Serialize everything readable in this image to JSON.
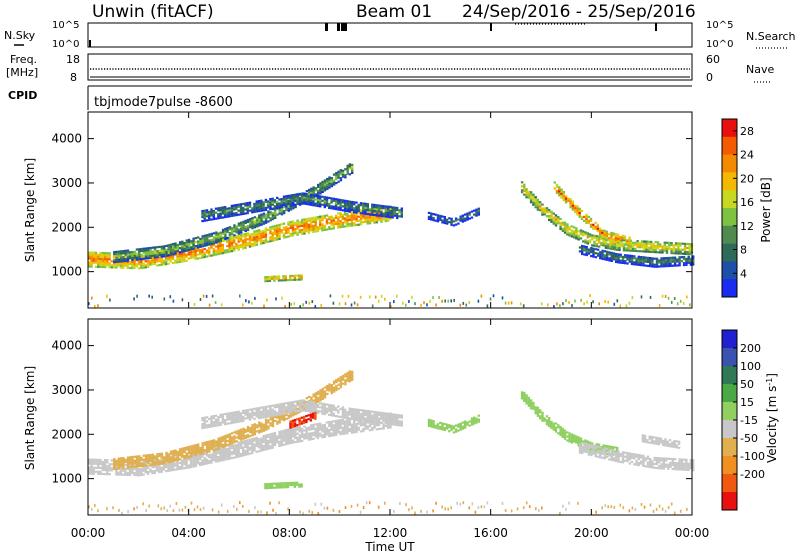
{
  "header": {
    "radar": "Unwin (fitACF)",
    "beam": "Beam 01",
    "dates": "24/Sep/2016 - 25/Sep/2016"
  },
  "top_panels": {
    "nsky": {
      "label": "N.Sky",
      "tick_high": "10^5",
      "tick_low": "10^0",
      "right_label": "N.Search",
      "right_high": "10^5",
      "right_low": "10^0"
    },
    "freq": {
      "label_line1": "Freq.",
      "label_line2": "[MHz]",
      "tick_high": "18",
      "tick_low": "8",
      "right_label": "Nave",
      "right_high": "60",
      "right_low": "0"
    },
    "cpid": {
      "label": "CPID",
      "mode": "tbjmode7pulse -8600"
    }
  },
  "chart_data": [
    {
      "type": "heatmap",
      "name": "power-panel",
      "xlabel": "Time UT",
      "ylabel": "Slant Range [km]",
      "x_ticks": [
        "00:00",
        "04:00",
        "08:00",
        "12:00",
        "16:00",
        "20:00",
        "00:00"
      ],
      "x_range_hours": [
        0,
        24
      ],
      "y_ticks": [
        1000,
        2000,
        3000,
        4000
      ],
      "y_range_km": [
        180,
        4600
      ],
      "colorbar": {
        "label": "Power [dB]",
        "ticks": [
          4,
          8,
          12,
          16,
          20,
          24,
          28
        ],
        "range": [
          0,
          30
        ],
        "colors": [
          "#1a2cf0",
          "#1d4fa8",
          "#2e6a57",
          "#4f8a50",
          "#7dc241",
          "#c8d820",
          "#f5b800",
          "#f58a00",
          "#f45a00",
          "#e8100e"
        ]
      },
      "traces": [
        {
          "hours": [
            0.0,
            2.0,
            4.0,
            6.0,
            8.0,
            10.0,
            12.0
          ],
          "km": [
            1260,
            1220,
            1400,
            1650,
            1950,
            2150,
            2300
          ],
          "width_km": 330,
          "value": 24
        },
        {
          "hours": [
            1.0,
            3.0,
            5.0,
            7.0,
            9.0,
            10.5
          ],
          "km": [
            1320,
            1450,
            1750,
            2200,
            2800,
            3350
          ],
          "width_km": 250,
          "value": 14
        },
        {
          "hours": [
            4.5,
            6.5,
            8.5,
            10.5,
            12.5
          ],
          "km": [
            2250,
            2450,
            2650,
            2450,
            2300
          ],
          "width_km": 260,
          "value": 11
        },
        {
          "hours": [
            7.0,
            8.5
          ],
          "km": [
            820,
            860
          ],
          "width_km": 110,
          "value": 22
        },
        {
          "hours": [
            13.5,
            14.5,
            15.5
          ],
          "km": [
            2250,
            2100,
            2350
          ],
          "width_km": 160,
          "value": 9
        },
        {
          "hours": [
            17.2,
            18.0,
            19.0,
            20.0,
            21.0,
            22.5,
            24.0
          ],
          "km": [
            2900,
            2400,
            1950,
            1700,
            1600,
            1550,
            1500
          ],
          "width_km": 260,
          "value": 19
        },
        {
          "hours": [
            18.5,
            19.5,
            20.5,
            21.5
          ],
          "km": [
            2900,
            2300,
            1800,
            1650
          ],
          "width_km": 180,
          "value": 25
        },
        {
          "hours": [
            19.5,
            21.0,
            22.5,
            24.0
          ],
          "km": [
            1500,
            1300,
            1200,
            1250
          ],
          "width_km": 220,
          "value": 10
        }
      ]
    },
    {
      "type": "heatmap",
      "name": "velocity-panel",
      "xlabel": "Time UT",
      "ylabel": "Slant Range [km]",
      "x_ticks": [
        "00:00",
        "04:00",
        "08:00",
        "12:00",
        "16:00",
        "20:00",
        "00:00"
      ],
      "x_range_hours": [
        0,
        24
      ],
      "y_ticks": [
        1000,
        2000,
        3000,
        4000
      ],
      "y_range_km": [
        180,
        4600
      ],
      "colorbar": {
        "label": "Velocity [m s-1]",
        "label_main": "Velocity [m s",
        "label_sup": "-1",
        "label_end": "]",
        "ticks": [
          "200",
          "100",
          "50",
          "15",
          "-15",
          "-50",
          "-100",
          "-200"
        ],
        "colors": [
          "#2020d0",
          "#3a52b0",
          "#2f7a55",
          "#4aa845",
          "#90d060",
          "#c8c8c8",
          "#e0b050",
          "#f09020",
          "#f05a10",
          "#e81010"
        ]
      },
      "traces": [
        {
          "hours": [
            0.0,
            2.0,
            4.0,
            6.0,
            8.0,
            10.0,
            12.0
          ],
          "km": [
            1260,
            1220,
            1400,
            1650,
            1950,
            2150,
            2300
          ],
          "width_km": 330,
          "value": -5
        },
        {
          "hours": [
            1.0,
            3.0,
            5.0,
            7.0,
            9.0,
            10.5
          ],
          "km": [
            1320,
            1450,
            1750,
            2200,
            2800,
            3350
          ],
          "width_km": 250,
          "value": -30
        },
        {
          "hours": [
            4.5,
            6.5,
            8.5,
            10.5,
            12.5
          ],
          "km": [
            2250,
            2450,
            2650,
            2450,
            2300
          ],
          "width_km": 260,
          "value": -8
        },
        {
          "hours": [
            7.0,
            8.5
          ],
          "km": [
            820,
            860
          ],
          "width_km": 110,
          "value": 40
        },
        {
          "hours": [
            8.0,
            9.0
          ],
          "km": [
            2200,
            2400
          ],
          "width_km": 140,
          "value": -200
        },
        {
          "hours": [
            13.5,
            14.5,
            15.5
          ],
          "km": [
            2250,
            2100,
            2350
          ],
          "width_km": 160,
          "value": 30
        },
        {
          "hours": [
            17.2,
            18.0,
            19.0,
            20.0,
            21.0
          ],
          "km": [
            2900,
            2400,
            1950,
            1700,
            1600
          ],
          "width_km": 220,
          "value": 40
        },
        {
          "hours": [
            19.5,
            21.0,
            22.5,
            24.0
          ],
          "km": [
            1700,
            1500,
            1350,
            1300
          ],
          "width_km": 260,
          "value": -8
        },
        {
          "hours": [
            22.0,
            23.5
          ],
          "km": [
            1900,
            1750
          ],
          "width_km": 160,
          "value": -5
        }
      ]
    }
  ]
}
